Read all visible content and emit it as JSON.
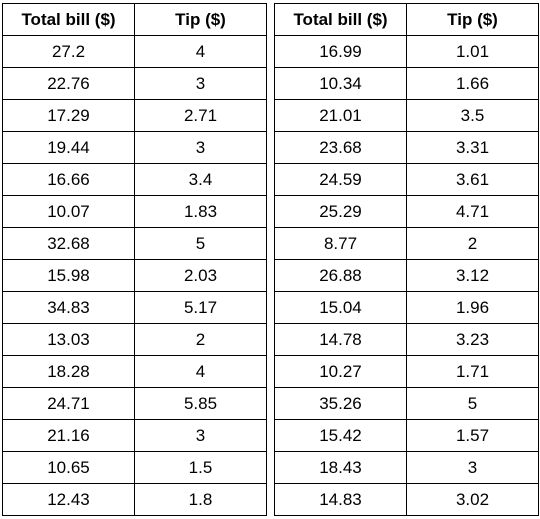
{
  "tables": [
    {
      "headers": [
        "Total bill ($)",
        "Tip ($)"
      ],
      "rows": [
        [
          "27.2",
          "4"
        ],
        [
          "22.76",
          "3"
        ],
        [
          "17.29",
          "2.71"
        ],
        [
          "19.44",
          "3"
        ],
        [
          "16.66",
          "3.4"
        ],
        [
          "10.07",
          "1.83"
        ],
        [
          "32.68",
          "5"
        ],
        [
          "15.98",
          "2.03"
        ],
        [
          "34.83",
          "5.17"
        ],
        [
          "13.03",
          "2"
        ],
        [
          "18.28",
          "4"
        ],
        [
          "24.71",
          "5.85"
        ],
        [
          "21.16",
          "3"
        ],
        [
          "10.65",
          "1.5"
        ],
        [
          "12.43",
          "1.8"
        ]
      ]
    },
    {
      "headers": [
        "Total bill ($)",
        "Tip ($)"
      ],
      "rows": [
        [
          "16.99",
          "1.01"
        ],
        [
          "10.34",
          "1.66"
        ],
        [
          "21.01",
          "3.5"
        ],
        [
          "23.68",
          "3.31"
        ],
        [
          "24.59",
          "3.61"
        ],
        [
          "25.29",
          "4.71"
        ],
        [
          "8.77",
          "2"
        ],
        [
          "26.88",
          "3.12"
        ],
        [
          "15.04",
          "1.96"
        ],
        [
          "14.78",
          "3.23"
        ],
        [
          "10.27",
          "1.71"
        ],
        [
          "35.26",
          "5"
        ],
        [
          "15.42",
          "1.57"
        ],
        [
          "18.43",
          "3"
        ],
        [
          "14.83",
          "3.02"
        ]
      ]
    }
  ]
}
